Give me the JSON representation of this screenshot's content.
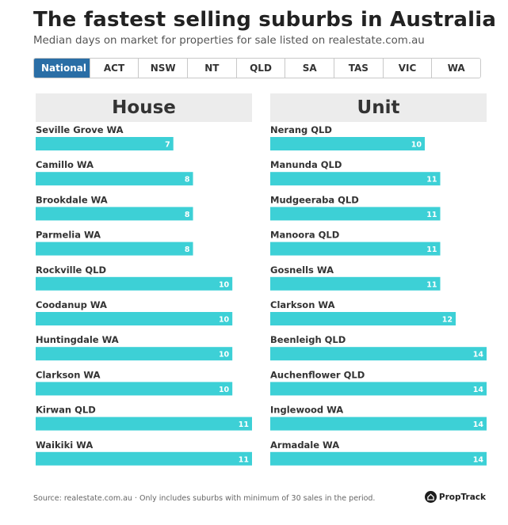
{
  "title": "The fastest selling suburbs in Australia",
  "subtitle": "Median days on market for properties for sale listed on realestate.com.au",
  "tabs": [
    "National",
    "ACT",
    "NSW",
    "NT",
    "QLD",
    "SA",
    "TAS",
    "VIC",
    "WA"
  ],
  "active_tab": "National",
  "bar_color": "#3dd0d6",
  "active_tab_color": "#2a6ea6",
  "footer": "Source: realestate.com.au · Only includes suburbs with minimum of 30 sales in the period.",
  "brand": {
    "name": "PropTrack",
    "icon": "proptrack-logo-icon"
  },
  "chart_data": [
    {
      "type": "bar",
      "orientation": "horizontal",
      "title": "House",
      "categories": [
        "Seville Grove WA",
        "Camillo WA",
        "Brookdale WA",
        "Parmelia WA",
        "Rockville QLD",
        "Coodanup WA",
        "Huntingdale WA",
        "Clarkson WA",
        "Kirwan QLD",
        "Waikiki WA"
      ],
      "values": [
        7,
        8,
        8,
        8,
        10,
        10,
        10,
        10,
        11,
        11
      ],
      "xlim": [
        0,
        11
      ]
    },
    {
      "type": "bar",
      "orientation": "horizontal",
      "title": "Unit",
      "categories": [
        "Nerang QLD",
        "Manunda QLD",
        "Mudgeeraba QLD",
        "Manoora QLD",
        "Gosnells WA",
        "Clarkson WA",
        "Beenleigh QLD",
        "Auchenflower QLD",
        "Inglewood WA",
        "Armadale WA"
      ],
      "values": [
        10,
        11,
        11,
        11,
        11,
        12,
        14,
        14,
        14,
        14
      ],
      "xlim": [
        0,
        14
      ]
    }
  ]
}
